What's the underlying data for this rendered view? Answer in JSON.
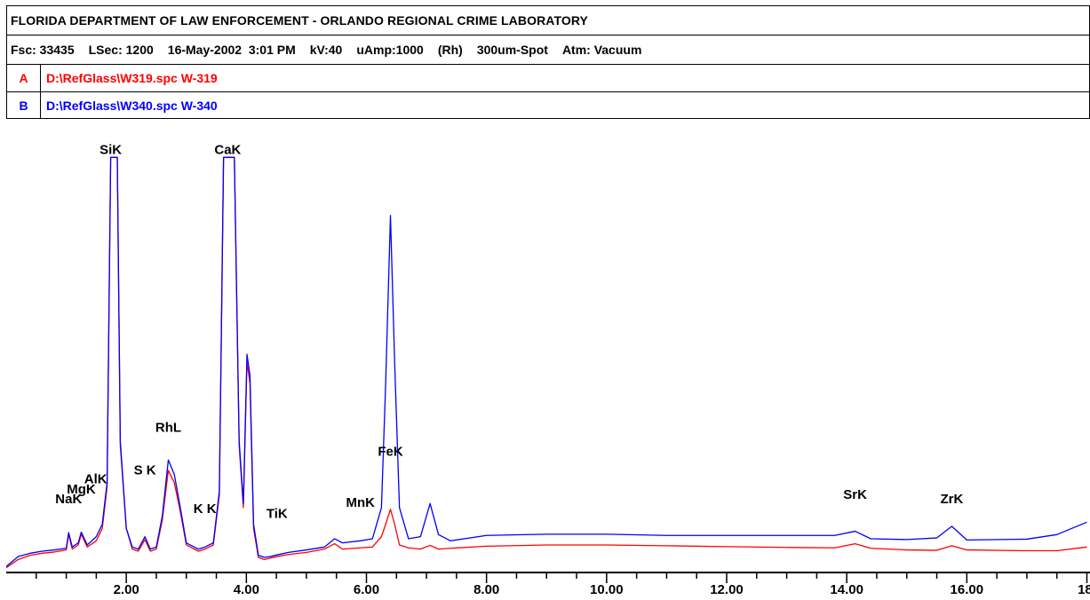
{
  "header": {
    "title": "FLORIDA DEPARTMENT OF LAW ENFORCEMENT - ORLANDO REGIONAL CRIME LABORATORY",
    "fsc": "Fsc: 33435",
    "lsec": "LSec: 1200",
    "datetime": "16-May-2002  3:01 PM",
    "kv": "kV:40",
    "uamp": "uAmp:1000",
    "target": "(Rh)",
    "spot": "300um-Spot",
    "atm": "Atm: Vacuum"
  },
  "files": [
    {
      "letter": "A",
      "path": "D:\\RefGlass\\W319.spc  W-319",
      "color": "#ff0000"
    },
    {
      "letter": "B",
      "path": "D:\\RefGlass\\W340.spc  W-340",
      "color": "#0000ff"
    }
  ],
  "chart_data": {
    "type": "line",
    "title": "",
    "xlabel": "",
    "ylabel": "",
    "xlim": [
      0,
      18
    ],
    "ylim": [
      0,
      100
    ],
    "x_ticks": [
      "2.00",
      "4.00",
      "6.00",
      "8.00",
      "10.00",
      "12.00",
      "14.00",
      "16.00",
      "18."
    ],
    "x_tick_values": [
      2,
      4,
      6,
      8,
      10,
      12,
      14,
      16,
      18
    ],
    "grid": false,
    "peak_labels": [
      {
        "label": "NaK",
        "x": 1.04,
        "y": 15.2
      },
      {
        "label": "MgK",
        "x": 1.25,
        "y": 17.6
      },
      {
        "label": "AlK",
        "x": 1.49,
        "y": 20.0
      },
      {
        "label": "SiK",
        "x": 1.74,
        "y": 99.5
      },
      {
        "label": "RhL",
        "x": 2.7,
        "y": 32.4
      },
      {
        "label": "S K",
        "x": 2.31,
        "y": 22.2
      },
      {
        "label": "K K",
        "x": 3.31,
        "y": 12.8
      },
      {
        "label": "CaK",
        "x": 3.69,
        "y": 99.5
      },
      {
        "label": "TiK",
        "x": 4.51,
        "y": 11.7
      },
      {
        "label": "MnK",
        "x": 5.9,
        "y": 14.3
      },
      {
        "label": "FeK",
        "x": 6.4,
        "y": 26.7
      },
      {
        "label": "SrK",
        "x": 14.14,
        "y": 16.3
      },
      {
        "label": "ZrK",
        "x": 15.75,
        "y": 15.2
      }
    ],
    "series": [
      {
        "name": "W-319",
        "color": "#ff0000",
        "x": [
          0.0,
          0.2,
          0.4,
          0.6,
          0.8,
          1.0,
          1.04,
          1.1,
          1.2,
          1.25,
          1.35,
          1.5,
          1.6,
          1.68,
          1.74,
          1.85,
          1.9,
          2.0,
          2.1,
          2.2,
          2.31,
          2.4,
          2.5,
          2.6,
          2.7,
          2.8,
          2.9,
          3.0,
          3.2,
          3.31,
          3.45,
          3.55,
          3.62,
          3.69,
          3.8,
          3.88,
          3.95,
          4.01,
          4.06,
          4.12,
          4.2,
          4.3,
          4.4,
          4.51,
          4.7,
          5.0,
          5.3,
          5.47,
          5.6,
          5.9,
          6.1,
          6.25,
          6.32,
          6.4,
          6.47,
          6.55,
          6.7,
          6.9,
          7.06,
          7.2,
          7.4,
          8.0,
          9.0,
          10.0,
          11.0,
          12.0,
          13.0,
          13.8,
          14.14,
          14.4,
          15.0,
          15.5,
          15.75,
          16.0,
          17.0,
          17.5,
          18.0
        ],
        "y": [
          0.5,
          2.5,
          3.5,
          4.0,
          4.3,
          4.8,
          8.5,
          5.0,
          6.0,
          8.6,
          5.5,
          7.0,
          10.0,
          20.0,
          99.5,
          99.5,
          30.0,
          10.0,
          5.0,
          4.5,
          7.3,
          4.5,
          5.0,
          12.0,
          24.0,
          21.0,
          14.0,
          6.0,
          4.5,
          5.0,
          6.0,
          18.0,
          99.5,
          99.5,
          99.5,
          30.0,
          15.0,
          50.0,
          45.0,
          10.0,
          3.0,
          2.5,
          2.8,
          3.2,
          3.7,
          4.2,
          5.0,
          6.3,
          5.0,
          5.3,
          5.5,
          8.0,
          11.0,
          14.6,
          11.0,
          6.0,
          5.3,
          5.0,
          5.9,
          5.0,
          5.2,
          5.7,
          6.0,
          6.0,
          5.8,
          5.6,
          5.4,
          5.3,
          6.3,
          5.2,
          4.8,
          4.7,
          5.8,
          4.8,
          4.6,
          4.6,
          5.5
        ]
      },
      {
        "name": "W-340",
        "color": "#0000ff",
        "x": [
          0.0,
          0.2,
          0.4,
          0.6,
          0.8,
          1.0,
          1.04,
          1.1,
          1.2,
          1.25,
          1.35,
          1.5,
          1.6,
          1.68,
          1.74,
          1.85,
          1.9,
          2.0,
          2.1,
          2.2,
          2.31,
          2.4,
          2.5,
          2.6,
          2.7,
          2.8,
          2.9,
          3.0,
          3.2,
          3.31,
          3.45,
          3.55,
          3.62,
          3.69,
          3.8,
          3.88,
          3.95,
          4.01,
          4.06,
          4.12,
          4.2,
          4.3,
          4.4,
          4.51,
          4.7,
          5.0,
          5.3,
          5.47,
          5.6,
          5.9,
          6.1,
          6.25,
          6.32,
          6.4,
          6.47,
          6.55,
          6.7,
          6.9,
          7.06,
          7.2,
          7.4,
          8.0,
          9.0,
          10.0,
          11.0,
          12.0,
          13.0,
          13.8,
          14.14,
          14.4,
          15.0,
          15.5,
          15.75,
          16.0,
          17.0,
          17.5,
          18.0
        ],
        "y": [
          0.8,
          3.2,
          4.0,
          4.5,
          4.8,
          5.2,
          9.0,
          5.5,
          6.5,
          9.1,
          6.0,
          8.0,
          11.0,
          21.0,
          99.5,
          99.5,
          31.0,
          10.0,
          5.5,
          5.0,
          8.0,
          5.0,
          5.5,
          13.0,
          26.5,
          23.0,
          15.0,
          6.5,
          5.0,
          5.5,
          6.5,
          19.0,
          99.5,
          99.5,
          99.5,
          31.0,
          16.0,
          52.0,
          47.0,
          11.0,
          3.5,
          3.0,
          3.2,
          3.6,
          4.2,
          4.8,
          5.5,
          7.5,
          6.5,
          7.0,
          7.5,
          15.0,
          45.0,
          85.5,
          50.0,
          15.0,
          7.5,
          8.0,
          16.0,
          8.5,
          7.0,
          8.3,
          8.6,
          8.6,
          8.3,
          8.3,
          8.3,
          8.3,
          9.3,
          7.5,
          7.3,
          7.7,
          10.5,
          7.2,
          7.4,
          8.5,
          11.5
        ]
      }
    ]
  }
}
